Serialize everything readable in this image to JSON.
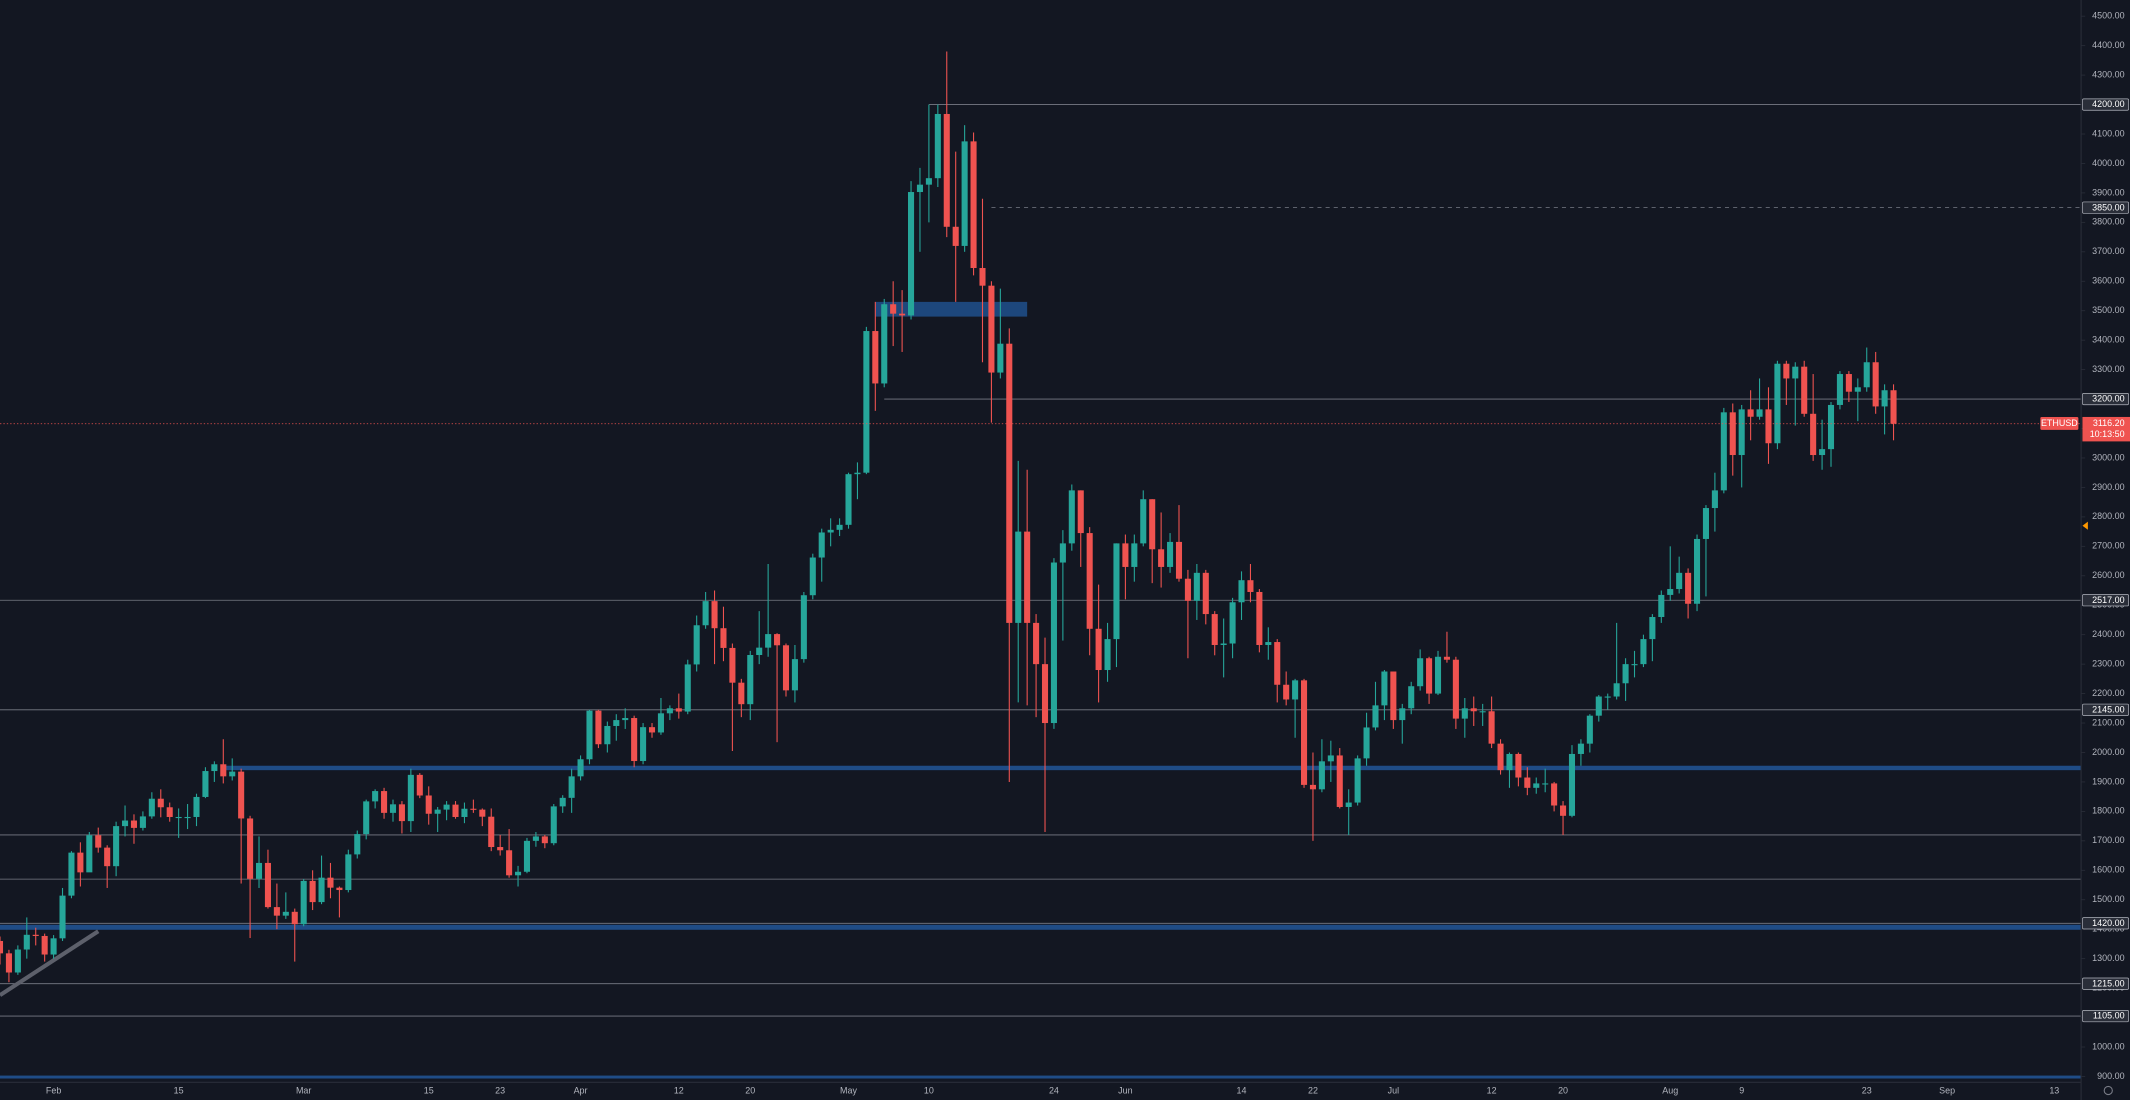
{
  "chart_data": {
    "type": "candlestick",
    "symbol": "ETHUSD",
    "up_color": "#26a69a",
    "down_color": "#ef5350",
    "grid": false,
    "x": [
      "Jan 26",
      "Jan 27",
      "Jan 28",
      "Jan 29",
      "Jan 30",
      "Jan 31",
      "Feb 1",
      "Feb 2",
      "Feb 3",
      "Feb 4",
      "Feb 5",
      "Feb 6",
      "Feb 7",
      "Feb 8",
      "Feb 9",
      "Feb 10",
      "Feb 11",
      "Feb 12",
      "Feb 13",
      "Feb 14",
      "Feb 15",
      "Feb 16",
      "Feb 17",
      "Feb 18",
      "Feb 19",
      "Feb 20",
      "Feb 21",
      "Feb 22",
      "Feb 23",
      "Feb 24",
      "Feb 25",
      "Feb 26",
      "Feb 27",
      "Feb 28",
      "Mar 1",
      "Mar 2",
      "Mar 3",
      "Mar 4",
      "Mar 5",
      "Mar 6",
      "Mar 7",
      "Mar 8",
      "Mar 9",
      "Mar 10",
      "Mar 11",
      "Mar 12",
      "Mar 13",
      "Mar 14",
      "Mar 15",
      "Mar 16",
      "Mar 17",
      "Mar 18",
      "Mar 19",
      "Mar 20",
      "Mar 21",
      "Mar 22",
      "Mar 23",
      "Mar 24",
      "Mar 25",
      "Mar 26",
      "Mar 27",
      "Mar 28",
      "Mar 29",
      "Mar 30",
      "Mar 31",
      "Apr 1",
      "Apr 2",
      "Apr 3",
      "Apr 4",
      "Apr 5",
      "Apr 6",
      "Apr 7",
      "Apr 8",
      "Apr 9",
      "Apr 10",
      "Apr 11",
      "Apr 12",
      "Apr 13",
      "Apr 14",
      "Apr 15",
      "Apr 16",
      "Apr 17",
      "Apr 18",
      "Apr 19",
      "Apr 20",
      "Apr 21",
      "Apr 22",
      "Apr 23",
      "Apr 24",
      "Apr 25",
      "Apr 26",
      "Apr 27",
      "Apr 28",
      "Apr 29",
      "Apr 30",
      "May 1",
      "May 2",
      "May 3",
      "May 4",
      "May 5",
      "May 6",
      "May 7",
      "May 8",
      "May 9",
      "May 10",
      "May 11",
      "May 12",
      "May 13",
      "May 14",
      "May 15",
      "May 16",
      "May 17",
      "May 18",
      "May 19",
      "May 20",
      "May 21",
      "May 22",
      "May 23",
      "May 24",
      "May 25",
      "May 26",
      "May 27",
      "May 28",
      "May 29",
      "May 30",
      "May 31",
      "Jun 1",
      "Jun 2",
      "Jun 3",
      "Jun 4",
      "Jun 5",
      "Jun 6",
      "Jun 7",
      "Jun 8",
      "Jun 9",
      "Jun 10",
      "Jun 11",
      "Jun 12",
      "Jun 13",
      "Jun 14",
      "Jun 15",
      "Jun 16",
      "Jun 17",
      "Jun 18",
      "Jun 19",
      "Jun 20",
      "Jun 21",
      "Jun 22",
      "Jun 23",
      "Jun 24",
      "Jun 25",
      "Jun 26",
      "Jun 27",
      "Jun 28",
      "Jun 29",
      "Jun 30",
      "Jul 1",
      "Jul 2",
      "Jul 3",
      "Jul 4",
      "Jul 5",
      "Jul 6",
      "Jul 7",
      "Jul 8",
      "Jul 9",
      "Jul 10",
      "Jul 11",
      "Jul 12",
      "Jul 13",
      "Jul 14",
      "Jul 15",
      "Jul 16",
      "Jul 17",
      "Jul 18",
      "Jul 19",
      "Jul 20",
      "Jul 21",
      "Jul 22",
      "Jul 23",
      "Jul 24",
      "Jul 25",
      "Jul 26",
      "Jul 27",
      "Jul 28",
      "Jul 29",
      "Jul 30",
      "Jul 31",
      "Aug 1",
      "Aug 2",
      "Aug 3",
      "Aug 4",
      "Aug 5",
      "Aug 6",
      "Aug 7",
      "Aug 8",
      "Aug 9",
      "Aug 10",
      "Aug 11",
      "Aug 12",
      "Aug 13",
      "Aug 14",
      "Aug 15",
      "Aug 16",
      "Aug 17",
      "Aug 18",
      "Aug 19",
      "Aug 20",
      "Aug 21",
      "Aug 22",
      "Aug 23",
      "Aug 24",
      "Aug 25",
      "Aug 26"
    ],
    "open": [
      1360,
      1318,
      1253,
      1331,
      1381,
      1377,
      1314,
      1369,
      1514,
      1660,
      1593,
      1719,
      1677,
      1614,
      1750,
      1769,
      1744,
      1783,
      1843,
      1814,
      1781,
      1781,
      1781,
      1849,
      1937,
      1960,
      1919,
      1935,
      1776,
      1571,
      1625,
      1475,
      1446,
      1459,
      1417,
      1564,
      1492,
      1575,
      1541,
      1533,
      1654,
      1723,
      1834,
      1869,
      1795,
      1824,
      1767,
      1924,
      1854,
      1792,
      1806,
      1823,
      1781,
      1809,
      1806,
      1782,
      1679,
      1668,
      1583,
      1595,
      1700,
      1715,
      1692,
      1817,
      1846,
      1919,
      1977,
      2142,
      2028,
      2090,
      2110,
      2117,
      1971,
      2086,
      2068,
      2133,
      2150,
      2139,
      2299,
      2432,
      2514,
      2422,
      2355,
      2237,
      2164,
      2331,
      2356,
      2402,
      2364,
      2211,
      2317,
      2534,
      2662,
      2747,
      2756,
      2773,
      2945,
      2950,
      3431,
      3253,
      3522,
      3490,
      3484,
      3903,
      3928,
      3950,
      4168,
      3785,
      3720,
      4075,
      3645,
      3585,
      3290,
      3388,
      2440,
      2750,
      2440,
      2300,
      2100,
      2645,
      2710,
      2890,
      2745,
      2420,
      2280,
      2385,
      2710,
      2630,
      2710,
      2860,
      2690,
      2630,
      2715,
      2590,
      2515,
      2610,
      2470,
      2365,
      2370,
      2510,
      2585,
      2545,
      2365,
      2375,
      2230,
      2180,
      2245,
      1890,
      1875,
      1970,
      1990,
      1815,
      1830,
      1980,
      2085,
      2160,
      2275,
      2110,
      2150,
      2225,
      2320,
      2200,
      2325,
      2315,
      2115,
      2150,
      2140,
      2140,
      2030,
      1940,
      1995,
      1915,
      1880,
      1895,
      1895,
      1820,
      1785,
      1995,
      2030,
      2125,
      2190,
      2190,
      2235,
      2300,
      2300,
      2385,
      2460,
      2535,
      2555,
      2610,
      2505,
      2725,
      2830,
      2890,
      3155,
      3010,
      3165,
      3140,
      3165,
      3050,
      3320,
      3270,
      3310,
      3150,
      3010,
      3030,
      3180,
      3285,
      3225,
      3240,
      3325,
      3175,
      3230
    ],
    "high": [
      1375,
      1330,
      1345,
      1440,
      1405,
      1385,
      1380,
      1540,
      1665,
      1695,
      1730,
      1745,
      1685,
      1765,
      1820,
      1790,
      1800,
      1865,
      1875,
      1830,
      1810,
      1825,
      1860,
      1950,
      1970,
      2045,
      1980,
      1945,
      1785,
      1715,
      1670,
      1555,
      1525,
      1470,
      1570,
      1600,
      1650,
      1625,
      1545,
      1670,
      1735,
      1840,
      1875,
      1880,
      1840,
      1835,
      1945,
      1930,
      1885,
      1815,
      1835,
      1835,
      1830,
      1840,
      1810,
      1810,
      1720,
      1740,
      1615,
      1710,
      1730,
      1720,
      1825,
      1855,
      1945,
      1990,
      2145,
      2145,
      2105,
      2130,
      2150,
      2125,
      2100,
      2100,
      2185,
      2160,
      2200,
      2315,
      2465,
      2545,
      2550,
      2495,
      2370,
      2250,
      2345,
      2480,
      2640,
      2405,
      2370,
      2365,
      2545,
      2675,
      2760,
      2795,
      2795,
      2950,
      2985,
      3445,
      3530,
      3540,
      3600,
      3570,
      3940,
      3985,
      4200,
      4200,
      4380,
      4040,
      4130,
      4105,
      3880,
      3600,
      3575,
      3440,
      2990,
      2960,
      2470,
      2390,
      2660,
      2755,
      2910,
      2890,
      2765,
      2570,
      2440,
      2710,
      2740,
      2740,
      2890,
      2860,
      2815,
      2745,
      2840,
      2620,
      2640,
      2620,
      2480,
      2455,
      2525,
      2615,
      2640,
      2555,
      2425,
      2385,
      2275,
      2250,
      2250,
      2000,
      2045,
      2040,
      2015,
      1875,
      1990,
      2135,
      2240,
      2280,
      2275,
      2165,
      2240,
      2350,
      2325,
      2345,
      2410,
      2325,
      2185,
      2190,
      2165,
      2190,
      2045,
      2000,
      2000,
      1950,
      1915,
      1945,
      1900,
      1835,
      2025,
      2045,
      2130,
      2195,
      2200,
      2440,
      2320,
      2345,
      2400,
      2470,
      2550,
      2700,
      2665,
      2625,
      2740,
      2840,
      2950,
      3170,
      3185,
      3180,
      3230,
      3270,
      3240,
      3330,
      3330,
      3325,
      3330,
      3285,
      3130,
      3190,
      3295,
      3295,
      3270,
      3375,
      3360,
      3250,
      3250
    ],
    "low": [
      1280,
      1220,
      1245,
      1300,
      1345,
      1290,
      1300,
      1360,
      1505,
      1545,
      1595,
      1660,
      1540,
      1580,
      1715,
      1690,
      1735,
      1775,
      1780,
      1765,
      1710,
      1740,
      1750,
      1845,
      1900,
      1895,
      1905,
      1555,
      1370,
      1540,
      1470,
      1400,
      1435,
      1290,
      1410,
      1465,
      1485,
      1505,
      1440,
      1525,
      1640,
      1705,
      1810,
      1775,
      1765,
      1725,
      1730,
      1845,
      1755,
      1730,
      1770,
      1775,
      1760,
      1795,
      1750,
      1665,
      1650,
      1575,
      1545,
      1590,
      1680,
      1675,
      1685,
      1795,
      1795,
      1905,
      1960,
      2015,
      2000,
      2040,
      2080,
      1950,
      1960,
      2050,
      2060,
      2110,
      2115,
      2130,
      2275,
      2420,
      2300,
      2310,
      2005,
      2120,
      2110,
      2300,
      2325,
      2035,
      2190,
      2170,
      2305,
      2520,
      2580,
      2700,
      2735,
      2760,
      2860,
      2945,
      3160,
      3240,
      3380,
      3360,
      3470,
      3700,
      3800,
      3920,
      3750,
      3530,
      3700,
      3620,
      3325,
      3120,
      3270,
      1900,
      2170,
      2160,
      2120,
      1730,
      2080,
      2380,
      2685,
      2630,
      2330,
      2170,
      2240,
      2290,
      2520,
      2580,
      2700,
      2575,
      2560,
      2610,
      2580,
      2320,
      2450,
      2435,
      2330,
      2255,
      2320,
      2450,
      2510,
      2340,
      2315,
      2170,
      2160,
      2050,
      1880,
      1700,
      1865,
      1900,
      1810,
      1720,
      1820,
      1955,
      2075,
      2110,
      2080,
      2030,
      2130,
      2210,
      2165,
      2195,
      2305,
      2080,
      2050,
      2090,
      2090,
      2015,
      1925,
      1880,
      1885,
      1855,
      1860,
      1865,
      1800,
      1720,
      1780,
      1955,
      2000,
      2105,
      2145,
      2180,
      2175,
      2255,
      2290,
      2310,
      2440,
      2515,
      2540,
      2455,
      2480,
      2530,
      2750,
      2880,
      2940,
      2900,
      3060,
      3130,
      2980,
      3030,
      3180,
      3110,
      3140,
      2990,
      2960,
      2970,
      3165,
      3190,
      3125,
      3225,
      3150,
      3080,
      3060
    ],
    "close": [
      1318,
      1253,
      1331,
      1381,
      1377,
      1314,
      1369,
      1514,
      1660,
      1593,
      1719,
      1677,
      1614,
      1750,
      1769,
      1744,
      1783,
      1843,
      1814,
      1781,
      1781,
      1781,
      1849,
      1937,
      1960,
      1919,
      1935,
      1776,
      1571,
      1625,
      1475,
      1446,
      1459,
      1417,
      1564,
      1492,
      1575,
      1541,
      1533,
      1654,
      1723,
      1834,
      1869,
      1795,
      1824,
      1767,
      1924,
      1854,
      1792,
      1806,
      1823,
      1781,
      1809,
      1806,
      1782,
      1679,
      1668,
      1583,
      1595,
      1700,
      1715,
      1692,
      1817,
      1846,
      1919,
      1977,
      2142,
      2028,
      2090,
      2110,
      2117,
      1971,
      2086,
      2068,
      2133,
      2150,
      2139,
      2299,
      2432,
      2514,
      2422,
      2355,
      2237,
      2164,
      2331,
      2356,
      2402,
      2364,
      2211,
      2317,
      2534,
      2662,
      2747,
      2756,
      2773,
      2945,
      2950,
      3431,
      3253,
      3522,
      3490,
      3484,
      3903,
      3928,
      3950,
      4168,
      3785,
      3720,
      4075,
      3645,
      3585,
      3290,
      3388,
      2440,
      2750,
      2440,
      2300,
      2100,
      2645,
      2710,
      2890,
      2745,
      2420,
      2280,
      2385,
      2710,
      2630,
      2710,
      2860,
      2690,
      2630,
      2715,
      2590,
      2515,
      2610,
      2470,
      2365,
      2370,
      2510,
      2585,
      2545,
      2365,
      2375,
      2230,
      2180,
      2245,
      1890,
      1875,
      1970,
      1990,
      1815,
      1830,
      1980,
      2085,
      2160,
      2275,
      2110,
      2150,
      2225,
      2320,
      2200,
      2325,
      2315,
      2115,
      2150,
      2140,
      2140,
      2030,
      1940,
      1995,
      1915,
      1880,
      1895,
      1895,
      1820,
      1785,
      1995,
      2030,
      2125,
      2190,
      2190,
      2235,
      2300,
      2300,
      2385,
      2460,
      2535,
      2555,
      2610,
      2505,
      2725,
      2830,
      2890,
      3155,
      3010,
      3165,
      3140,
      3165,
      3050,
      3320,
      3270,
      3310,
      3150,
      3010,
      3030,
      3180,
      3285,
      3225,
      3240,
      3325,
      3175,
      3230,
      3116.2
    ],
    "xlim": [
      "Jan 26",
      "Sep 16"
    ],
    "xticks": [
      {
        "value": "Feb 1",
        "label": "Feb"
      },
      {
        "value": "Feb 15",
        "label": "15"
      },
      {
        "value": "Mar 1",
        "label": "Mar"
      },
      {
        "value": "Mar 15",
        "label": "15"
      },
      {
        "value": "Mar 23",
        "label": "23"
      },
      {
        "value": "Apr 1",
        "label": "Apr"
      },
      {
        "value": "Apr 12",
        "label": "12"
      },
      {
        "value": "Apr 20",
        "label": "20"
      },
      {
        "value": "May 1",
        "label": "May"
      },
      {
        "value": "May 10",
        "label": "10"
      },
      {
        "value": "May 24",
        "label": "24"
      },
      {
        "value": "Jun 1",
        "label": "Jun"
      },
      {
        "value": "Jun 14",
        "label": "14"
      },
      {
        "value": "Jun 22",
        "label": "22"
      },
      {
        "value": "Jul 1",
        "label": "Jul"
      },
      {
        "value": "Jul 12",
        "label": "12"
      },
      {
        "value": "Jul 20",
        "label": "20"
      },
      {
        "value": "Aug 1",
        "label": "Aug"
      },
      {
        "value": "Aug 9",
        "label": "9"
      },
      {
        "value": "Aug 23",
        "label": "23"
      },
      {
        "value": "Sep 1",
        "label": "Sep"
      },
      {
        "value": "Sep 13",
        "label": "13"
      }
    ],
    "ylim": [
      880,
      4555
    ],
    "yticks": [
      {
        "value": 900,
        "label": "900.00"
      },
      {
        "value": 1000,
        "label": "1000.00"
      },
      {
        "value": 1100,
        "label": "1100.00"
      },
      {
        "value": 1200,
        "label": "1200.00"
      },
      {
        "value": 1300,
        "label": "1300.00"
      },
      {
        "value": 1400,
        "label": "1400.00"
      },
      {
        "value": 1500,
        "label": "1500.00"
      },
      {
        "value": 1600,
        "label": "1600.00"
      },
      {
        "value": 1700,
        "label": "1700.00"
      },
      {
        "value": 1800,
        "label": "1800.00"
      },
      {
        "value": 1900,
        "label": "1900.00"
      },
      {
        "value": 2000,
        "label": "2000.00"
      },
      {
        "value": 2100,
        "label": "2100.00"
      },
      {
        "value": 2200,
        "label": "2200.00"
      },
      {
        "value": 2300,
        "label": "2300.00"
      },
      {
        "value": 2400,
        "label": "2400.00"
      },
      {
        "value": 2500,
        "label": "2500.00"
      },
      {
        "value": 2600,
        "label": "2600.00"
      },
      {
        "value": 2700,
        "label": "2700.00"
      },
      {
        "value": 2800,
        "label": "2800.00"
      },
      {
        "value": 2900,
        "label": "2900.00"
      },
      {
        "value": 3000,
        "label": "3000.00"
      },
      {
        "value": 3100,
        "label": "3100.00"
      },
      {
        "value": 3200,
        "label": "3200.00"
      },
      {
        "value": 3300,
        "label": "3300.00"
      },
      {
        "value": 3400,
        "label": "3400.00"
      },
      {
        "value": 3500,
        "label": "3500.00"
      },
      {
        "value": 3600,
        "label": "3600.00"
      },
      {
        "value": 3700,
        "label": "3700.00"
      },
      {
        "value": 3800,
        "label": "3800.00"
      },
      {
        "value": 3900,
        "label": "3900.00"
      },
      {
        "value": 4000,
        "label": "4000.00"
      },
      {
        "value": 4100,
        "label": "4100.00"
      },
      {
        "value": 4200,
        "label": "4200.00"
      },
      {
        "value": 4300,
        "label": "4300.00"
      },
      {
        "value": 4400,
        "label": "4400.00"
      },
      {
        "value": 4500,
        "label": "4500.00"
      }
    ],
    "levels": [
      {
        "value": 4200,
        "label": "4200.00",
        "from": "May 10"
      },
      {
        "value": 3850,
        "label": "3850.00",
        "from": "May 17",
        "style": "dashed"
      },
      {
        "value": 3200,
        "label": "3200.00",
        "from": "May 5"
      },
      {
        "value": 2517,
        "label": "2517.00"
      },
      {
        "value": 2145,
        "label": "2145.00"
      },
      {
        "value": 1720
      },
      {
        "value": 1570
      },
      {
        "value": 1420,
        "label": "1420.00"
      },
      {
        "value": 1215,
        "label": "1215.00"
      },
      {
        "value": 1105,
        "label": "1105.00"
      }
    ],
    "zones": [
      {
        "low": 1940,
        "high": 1955,
        "from": "Feb 20"
      },
      {
        "low": 1398,
        "high": 1415
      },
      {
        "low": 893,
        "high": 903
      }
    ],
    "box": {
      "from": "May 4",
      "to": "May 21",
      "low": 3480,
      "high": 3530
    },
    "trendline": {
      "from": "Jan 26",
      "to": "Feb 6",
      "start": 1176,
      "end": 1393
    },
    "price_line": {
      "value": 3116.2,
      "label": "3116.20"
    },
    "countdown": "10:13:50",
    "alert": 2770
  }
}
